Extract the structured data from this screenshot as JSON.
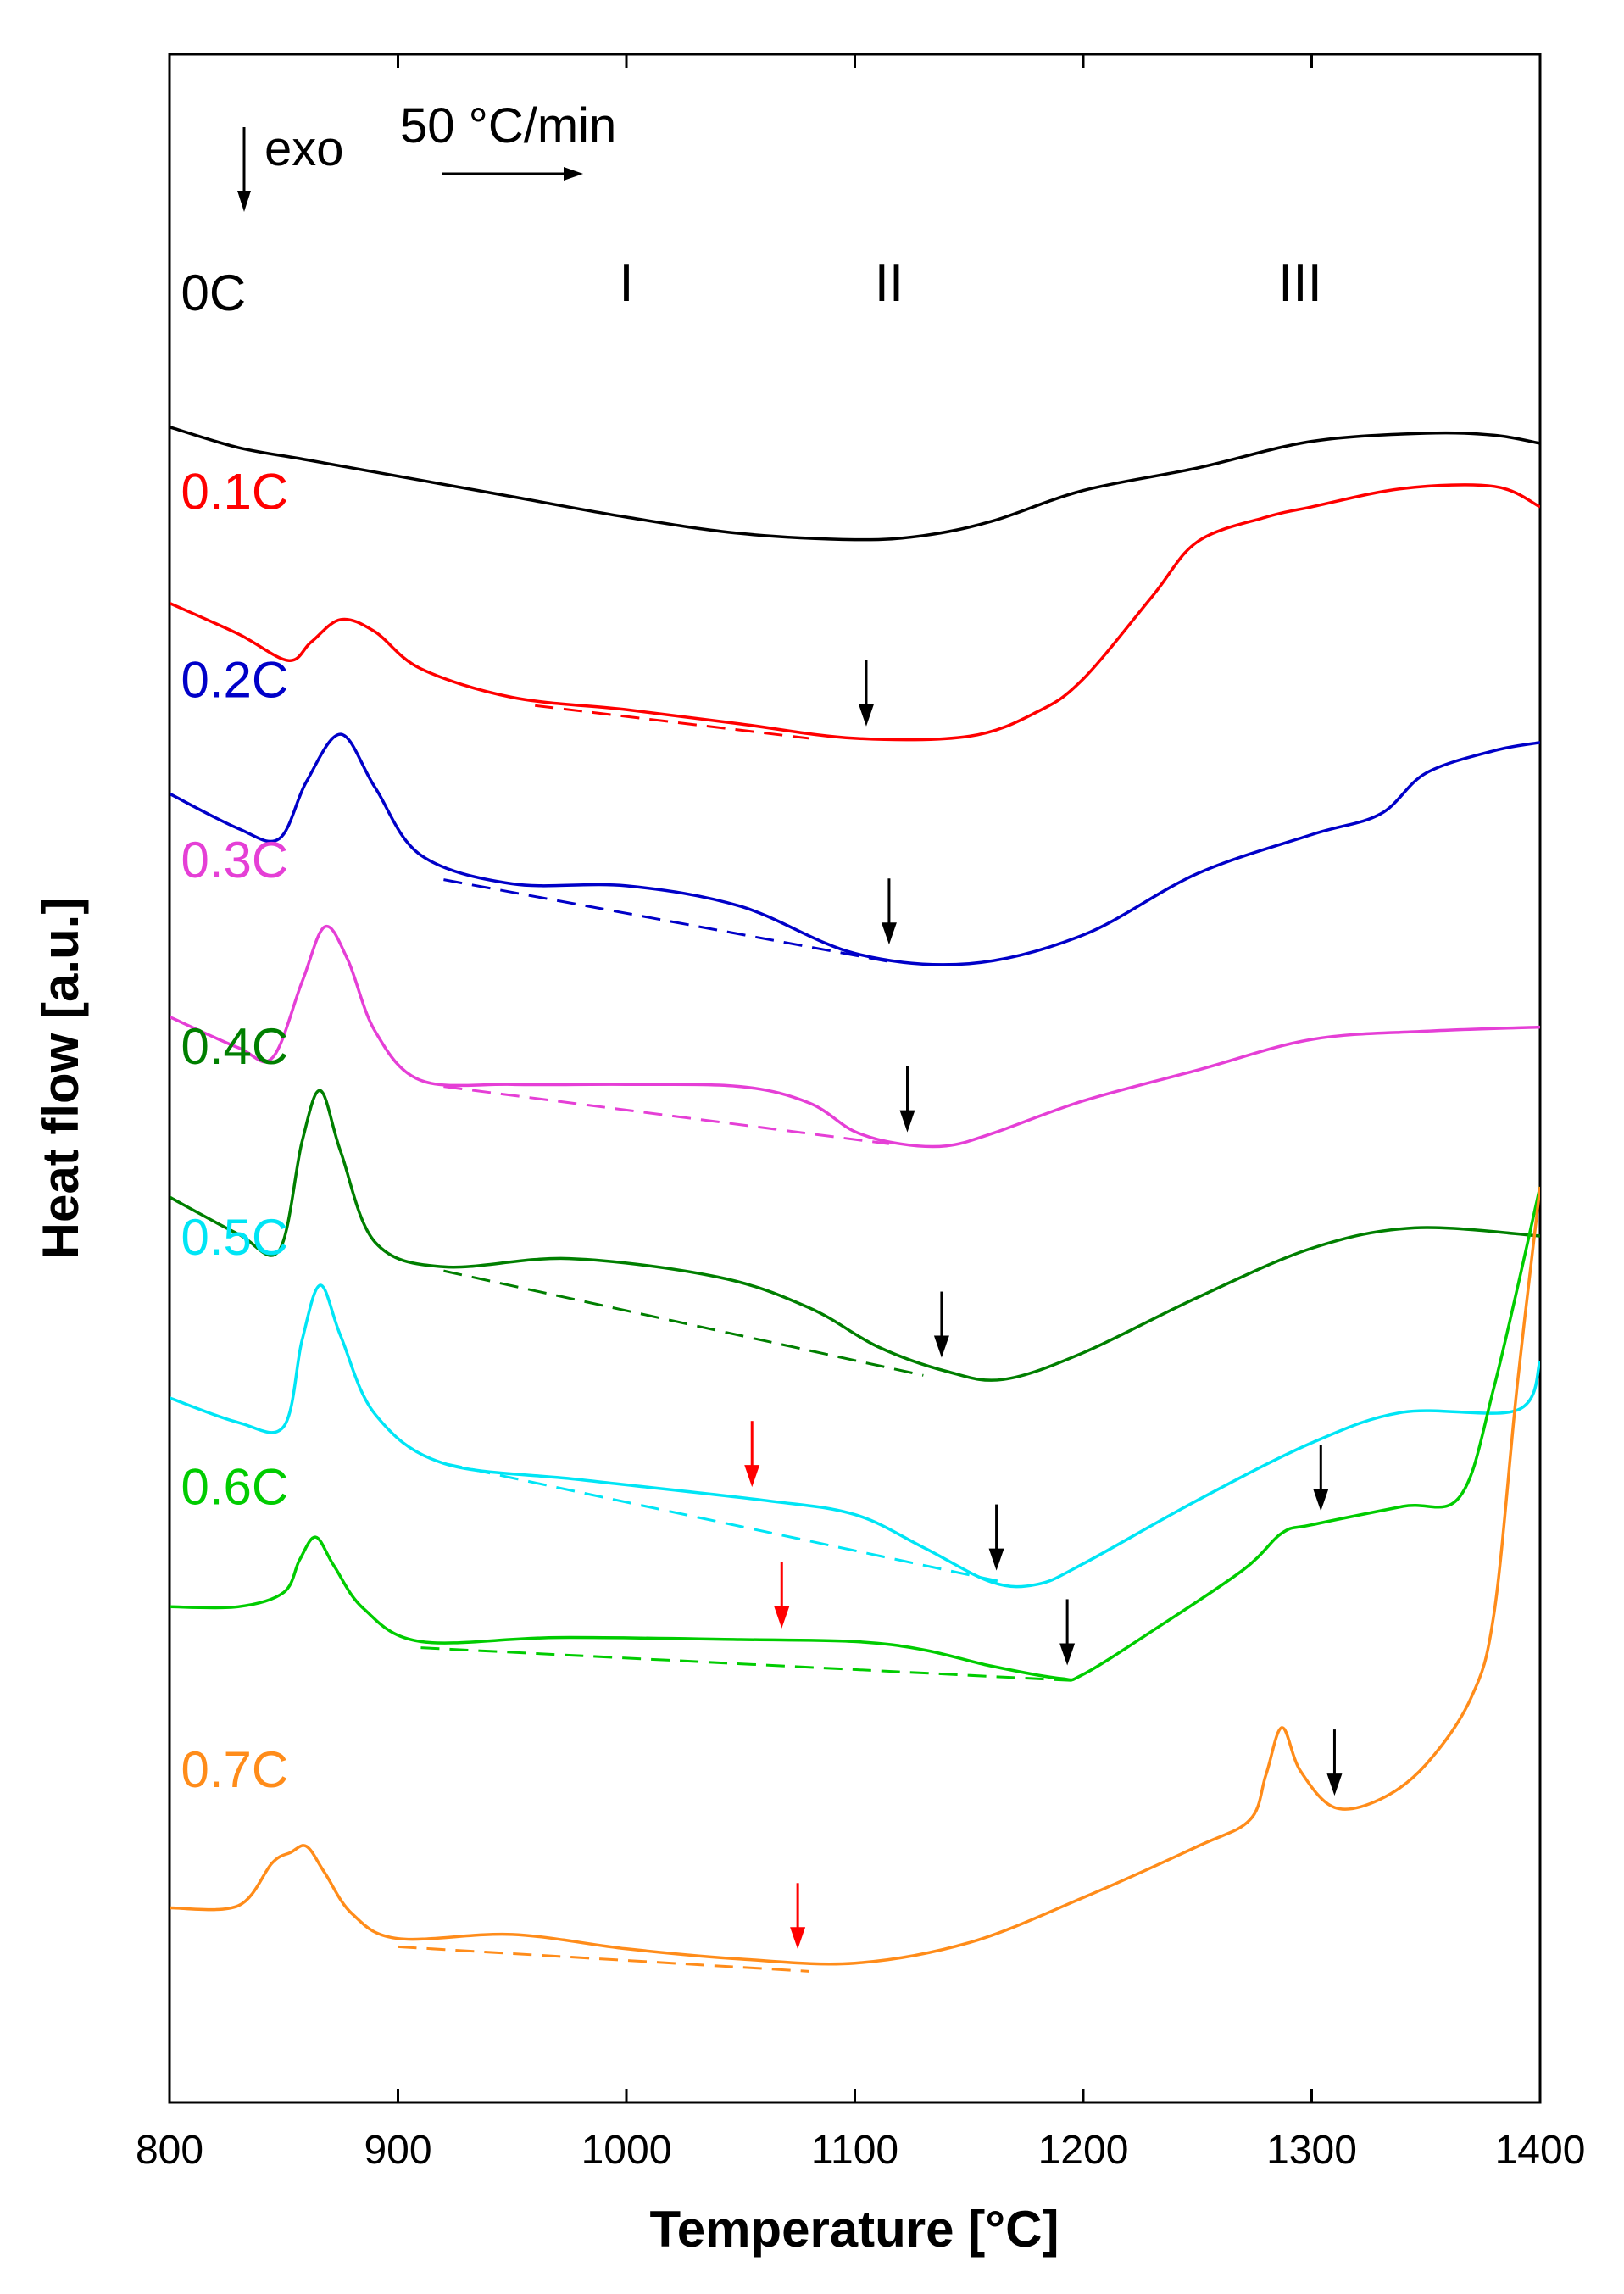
{
  "chart_data": {
    "type": "line",
    "title": "",
    "xlabel": "Temperature [°C]",
    "ylabel": "Heat flow [a.u.]",
    "xlim": [
      800,
      1400
    ],
    "ylim": [
      0,
      100
    ],
    "xticks": [
      800,
      900,
      1000,
      1100,
      1200,
      1300,
      1400
    ],
    "yticks_shown": false,
    "annotations": {
      "exo": "exo",
      "rate": "50 °C/min",
      "regions": [
        {
          "label": "I",
          "x": 1000
        },
        {
          "label": "II",
          "x": 1115
        },
        {
          "label": "III",
          "x": 1295
        }
      ]
    },
    "series": [
      {
        "name": "0C",
        "color": "#000000",
        "label_pos": [
          805,
          87.5
        ],
        "x": [
          800,
          830,
          860,
          900,
          950,
          1000,
          1050,
          1100,
          1130,
          1160,
          1200,
          1250,
          1300,
          1350,
          1380,
          1400
        ],
        "y": [
          81.8,
          80.8,
          80.2,
          79.4,
          78.4,
          77.4,
          76.6,
          76.3,
          76.5,
          77.2,
          78.7,
          79.8,
          81.1,
          81.5,
          81.4,
          81.0
        ],
        "arrows": [],
        "baselines": []
      },
      {
        "name": "0.1C",
        "color": "#ff0000",
        "label_pos": [
          805,
          77.8
        ],
        "x": [
          800,
          830,
          852,
          862,
          875,
          890,
          910,
          950,
          1000,
          1050,
          1100,
          1150,
          1180,
          1200,
          1230,
          1250,
          1280,
          1300,
          1340,
          1380,
          1400
        ],
        "y": [
          73.2,
          71.7,
          70.4,
          71.3,
          72.4,
          71.8,
          70.0,
          68.6,
          68.0,
          67.3,
          66.6,
          66.7,
          67.9,
          69.5,
          73.5,
          76.2,
          77.4,
          77.9,
          78.8,
          78.9,
          77.9
        ],
        "arrows": [
          {
            "x": 1105,
            "color": "#000000"
          }
        ],
        "baselines": [
          {
            "x": [
              960,
              1080
            ],
            "y": [
              68.2,
              66.6
            ]
          }
        ]
      },
      {
        "name": "0.2C",
        "color": "#0000c8",
        "label_pos": [
          805,
          68.6
        ],
        "x": [
          800,
          830,
          848,
          860,
          875,
          890,
          910,
          950,
          1000,
          1050,
          1100,
          1150,
          1200,
          1250,
          1300,
          1330,
          1350,
          1380,
          1400
        ],
        "y": [
          63.9,
          62.2,
          61.7,
          64.5,
          66.8,
          64.2,
          60.9,
          59.5,
          59.4,
          58.4,
          56.1,
          55.6,
          57.0,
          60.0,
          61.9,
          62.9,
          64.9,
          66.0,
          66.4
        ],
        "arrows": [
          {
            "x": 1115,
            "color": "#000000"
          }
        ],
        "baselines": [
          {
            "x": [
              920,
              1115
            ],
            "y": [
              59.7,
              55.7
            ]
          }
        ]
      },
      {
        "name": "0.3C",
        "color": "#e53fd6",
        "label_pos": [
          805,
          59.8
        ],
        "x": [
          800,
          830,
          845,
          858,
          868,
          878,
          890,
          910,
          950,
          1000,
          1050,
          1080,
          1100,
          1120,
          1140,
          1160,
          1200,
          1250,
          1300,
          1350,
          1400
        ],
        "y": [
          53.0,
          51.5,
          51.0,
          54.7,
          57.4,
          55.8,
          52.3,
          49.9,
          49.7,
          49.7,
          49.6,
          48.8,
          47.4,
          46.8,
          46.7,
          47.3,
          48.9,
          50.4,
          51.9,
          52.3,
          52.5
        ],
        "arrows": [
          {
            "x": 1123,
            "color": "#000000"
          }
        ],
        "baselines": [
          {
            "x": [
              920,
              1115
            ],
            "y": [
              49.6,
              46.8
            ]
          }
        ]
      },
      {
        "name": "0.4C",
        "color": "#007f00",
        "label_pos": [
          805,
          50.7
        ],
        "x": [
          800,
          830,
          848,
          858,
          866,
          875,
          890,
          920,
          975,
          1040,
          1080,
          1110,
          1140,
          1165,
          1200,
          1250,
          1300,
          1345,
          1400
        ],
        "y": [
          44.2,
          42.4,
          41.6,
          46.9,
          49.4,
          46.4,
          42.0,
          40.8,
          41.2,
          40.3,
          38.8,
          36.9,
          35.7,
          35.3,
          36.6,
          39.3,
          41.7,
          42.7,
          42.3
        ],
        "arrows": [
          {
            "x": 1138,
            "color": "#000000"
          }
        ],
        "baselines": [
          {
            "x": [
              920,
              1130
            ],
            "y": [
              40.6,
              35.5
            ]
          }
        ]
      },
      {
        "name": "0.5C",
        "color": "#00e5f5",
        "label_pos": [
          805,
          41.4
        ],
        "x": [
          800,
          830,
          850,
          858,
          866,
          875,
          890,
          920,
          980,
          1060,
          1100,
          1130,
          1160,
          1180,
          1200,
          1250,
          1300,
          1340,
          1390,
          1400
        ],
        "y": [
          34.4,
          33.2,
          33.0,
          37.2,
          39.9,
          37.4,
          33.6,
          31.2,
          30.4,
          29.4,
          28.7,
          27.1,
          25.4,
          25.3,
          26.3,
          29.4,
          32.2,
          33.7,
          33.8,
          36.2
        ],
        "arrows": [
          {
            "x": 1055,
            "color": "#ff0000"
          },
          {
            "x": 1162,
            "color": "#000000"
          }
        ],
        "baselines": [
          {
            "x": [
              920,
              1165
            ],
            "y": [
              31.2,
              25.4
            ]
          }
        ]
      },
      {
        "name": "0.6C",
        "color": "#00cc00",
        "label_pos": [
          805,
          29.2
        ],
        "x": [
          800,
          830,
          850,
          857,
          864,
          872,
          885,
          910,
          970,
          1050,
          1100,
          1130,
          1160,
          1190,
          1200,
          1230,
          1270,
          1287,
          1300,
          1340,
          1365,
          1380,
          1400
        ],
        "y": [
          24.2,
          24.2,
          24.9,
          26.5,
          27.6,
          26.2,
          24.1,
          22.5,
          22.7,
          22.6,
          22.5,
          22.1,
          21.3,
          20.7,
          20.9,
          23.0,
          26.0,
          27.8,
          28.2,
          29.1,
          29.6,
          35.0,
          44.7
        ],
        "arrows": [
          {
            "x": 1068,
            "color": "#ff0000"
          },
          {
            "x": 1193,
            "color": "#000000"
          },
          {
            "x": 1304,
            "color": "#000000"
          }
        ],
        "baselines": [
          {
            "x": [
              910,
              1195
            ],
            "y": [
              22.2,
              20.6
            ]
          }
        ]
      },
      {
        "name": "0.7C",
        "color": "#ff8c1a",
        "label_pos": [
          805,
          15.4
        ],
        "x": [
          800,
          830,
          845,
          853,
          860,
          868,
          880,
          900,
          950,
          1000,
          1050,
          1100,
          1150,
          1200,
          1250,
          1273,
          1280,
          1287,
          1295,
          1310,
          1330,
          1350,
          1370,
          1380,
          1390,
          1400
        ],
        "y": [
          9.5,
          9.6,
          11.7,
          12.2,
          12.5,
          11.2,
          9.2,
          8.0,
          8.2,
          7.5,
          7.0,
          6.8,
          7.8,
          10.0,
          12.5,
          13.8,
          16.0,
          18.3,
          16.2,
          14.4,
          14.8,
          16.5,
          19.8,
          24.0,
          35.0,
          44.7
        ],
        "arrows": [
          {
            "x": 1075,
            "color": "#ff0000"
          },
          {
            "x": 1310,
            "color": "#000000"
          }
        ],
        "baselines": [
          {
            "x": [
              900,
              1080
            ],
            "y": [
              7.6,
              6.4
            ]
          }
        ]
      }
    ]
  }
}
